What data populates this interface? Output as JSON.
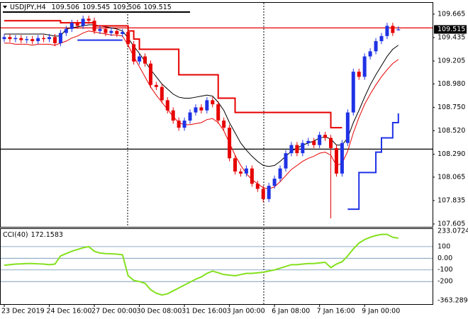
{
  "chart_data": {
    "type": "candlestick",
    "title": "USDJPY,H4",
    "categories": [
      "23 Dec 2019",
      null,
      null,
      null,
      null,
      null,
      null,
      null,
      "24 Dec 16:00",
      null,
      null,
      null,
      null,
      null,
      null,
      null,
      "27 Dec 00:00",
      null,
      null,
      null,
      null,
      null,
      null,
      null,
      "30 Dec 08:00",
      null,
      null,
      null,
      null,
      null,
      null,
      null,
      "31 Dec 16:00",
      null,
      null,
      null,
      null,
      null,
      null,
      null,
      "3 Jan 00:00",
      null,
      null,
      null,
      null,
      null,
      null,
      null,
      "6 Jan 08:00",
      null,
      null,
      null,
      null,
      null,
      null,
      null,
      "7 Jan 16:00",
      null,
      null,
      null,
      null,
      null,
      null,
      null,
      "9 Jan 00:00",
      null,
      null,
      null,
      null,
      null,
      null
    ],
    "open": [
      109.42,
      109.44,
      109.42,
      109.43,
      109.41,
      109.42,
      109.4,
      109.43,
      109.42,
      109.44,
      109.38,
      109.48,
      109.52,
      109.58,
      109.55,
      109.62,
      109.6,
      109.5,
      109.52,
      109.48,
      109.5,
      109.47,
      109.49,
      109.37,
      109.2,
      109.25,
      109.18,
      108.97,
      108.95,
      108.82,
      108.72,
      108.62,
      108.55,
      108.62,
      108.7,
      108.75,
      108.72,
      108.82,
      108.78,
      108.62,
      108.55,
      108.25,
      108.12,
      108.1,
      108.15,
      108.0,
      107.95,
      107.85,
      107.98,
      108.05,
      108.15,
      108.3,
      108.38,
      108.3,
      108.4,
      108.42,
      108.38,
      108.48,
      108.45,
      108.35,
      108.1,
      108.4,
      108.7,
      109.1,
      109.05,
      109.25,
      109.3,
      109.4,
      109.45,
      109.55,
      109.506
    ],
    "high": [
      109.47,
      109.47,
      109.46,
      109.46,
      109.45,
      109.45,
      109.46,
      109.46,
      109.47,
      109.47,
      109.51,
      109.55,
      109.61,
      109.61,
      109.65,
      109.65,
      109.63,
      109.55,
      109.55,
      109.53,
      109.53,
      109.52,
      109.52,
      109.4,
      109.28,
      109.28,
      109.21,
      109.0,
      108.98,
      108.85,
      108.75,
      108.65,
      108.65,
      108.73,
      108.78,
      108.78,
      108.85,
      108.85,
      108.81,
      108.65,
      108.58,
      108.28,
      108.15,
      108.18,
      108.18,
      108.03,
      107.98,
      108.01,
      108.08,
      108.18,
      108.33,
      108.41,
      108.41,
      108.43,
      108.45,
      108.45,
      108.51,
      108.51,
      108.48,
      108.38,
      108.43,
      108.73,
      109.13,
      109.13,
      109.28,
      109.33,
      109.43,
      109.48,
      109.58,
      109.58,
      109.545
    ],
    "low": [
      109.39,
      109.39,
      109.39,
      109.38,
      109.38,
      109.37,
      109.37,
      109.39,
      109.39,
      109.35,
      109.35,
      109.45,
      109.49,
      109.52,
      109.52,
      109.57,
      109.47,
      109.47,
      109.45,
      109.45,
      109.44,
      109.44,
      109.34,
      109.17,
      109.17,
      109.15,
      108.94,
      108.92,
      108.79,
      108.69,
      108.59,
      108.52,
      108.52,
      108.59,
      108.67,
      108.69,
      108.69,
      108.75,
      108.59,
      108.52,
      108.22,
      108.09,
      108.07,
      108.07,
      107.97,
      107.92,
      107.82,
      107.82,
      107.95,
      108.02,
      108.12,
      108.27,
      108.27,
      108.27,
      108.37,
      108.35,
      108.35,
      108.42,
      107.66,
      108.07,
      108.07,
      108.37,
      108.67,
      109.02,
      109.02,
      109.22,
      109.27,
      109.37,
      109.42,
      109.45,
      109.506
    ],
    "close": [
      109.44,
      109.42,
      109.43,
      109.41,
      109.42,
      109.4,
      109.43,
      109.42,
      109.44,
      109.38,
      109.48,
      109.52,
      109.58,
      109.55,
      109.62,
      109.6,
      109.5,
      109.52,
      109.48,
      109.5,
      109.47,
      109.49,
      109.37,
      109.2,
      109.25,
      109.18,
      108.97,
      108.95,
      108.82,
      108.72,
      108.62,
      108.55,
      108.62,
      108.7,
      108.75,
      108.72,
      108.82,
      108.78,
      108.62,
      108.55,
      108.25,
      108.12,
      108.1,
      108.15,
      108.0,
      107.95,
      107.85,
      107.98,
      108.05,
      108.15,
      108.3,
      108.38,
      108.3,
      108.4,
      108.42,
      108.38,
      108.48,
      108.45,
      108.35,
      108.1,
      108.4,
      108.7,
      109.1,
      109.05,
      109.25,
      109.3,
      109.4,
      109.45,
      109.55,
      109.48,
      109.515
    ],
    "up_color": "#1f32e6",
    "down_color": "#e60000",
    "ylim": [
      107.577,
      109.769
    ],
    "yticks": [
      109.665,
      109.435,
      109.205,
      {
        "value": 108.98,
        "label": "108.980"
      },
      {
        "value": 108.75,
        "label": "108.750"
      },
      {
        "value": 108.52,
        "label": "108.520"
      },
      {
        "value": 108.29,
        "label": "108.290"
      },
      108.065,
      107.835,
      107.605
    ],
    "lines": [
      {
        "color": "#000000",
        "width": 1,
        "values": [
          109.47,
          109.47,
          109.47,
          109.47,
          109.47,
          109.47,
          109.47,
          109.47,
          109.46,
          109.45,
          109.45,
          109.52,
          109.53,
          109.54,
          109.55,
          109.56,
          109.56,
          109.55,
          109.54,
          109.53,
          109.52,
          109.5,
          109.43,
          109.35,
          109.28,
          109.2,
          109.12,
          109.05,
          108.98,
          108.93,
          108.88,
          108.85,
          108.84,
          108.84,
          108.85,
          108.86,
          108.87,
          108.86,
          108.8,
          108.72,
          108.6,
          108.5,
          108.4,
          108.33,
          108.27,
          108.22,
          108.18,
          108.17,
          108.18,
          108.22,
          108.27,
          108.32,
          108.35,
          108.38,
          108.4,
          108.42,
          108.45,
          108.46,
          108.44,
          108.38,
          108.38,
          108.45,
          108.6,
          108.72,
          108.85,
          108.97,
          109.07,
          109.16,
          109.25,
          109.32,
          109.36
        ]
      },
      {
        "color": "#e60000",
        "width": 1,
        "values": [
          109.38,
          109.38,
          109.37,
          109.37,
          109.37,
          109.36,
          109.37,
          109.37,
          109.37,
          109.36,
          109.38,
          109.4,
          109.43,
          109.45,
          109.48,
          109.5,
          109.49,
          109.48,
          109.47,
          109.46,
          109.46,
          109.45,
          109.36,
          109.25,
          109.15,
          109.05,
          108.95,
          108.87,
          108.8,
          108.73,
          108.66,
          108.6,
          108.58,
          108.58,
          108.59,
          108.6,
          108.63,
          108.64,
          108.6,
          108.52,
          108.4,
          108.28,
          108.18,
          108.1,
          108.04,
          108.0,
          107.96,
          107.95,
          107.97,
          108.02,
          108.08,
          108.14,
          108.18,
          108.22,
          108.25,
          108.27,
          108.3,
          108.31,
          108.28,
          108.18,
          108.2,
          108.32,
          108.5,
          108.65,
          108.78,
          108.88,
          108.97,
          109.05,
          109.12,
          109.18,
          109.22
        ]
      },
      {
        "color": "#e60000",
        "width": 2,
        "step": true,
        "values": [
          109.6,
          109.6,
          109.6,
          109.6,
          109.6,
          109.6,
          109.6,
          109.6,
          109.6,
          109.6,
          109.58,
          109.58,
          109.58,
          109.58,
          109.58,
          109.58,
          109.55,
          109.55,
          109.55,
          109.55,
          109.55,
          109.55,
          109.5,
          109.42,
          109.32,
          109.32,
          109.32,
          109.32,
          109.32,
          109.32,
          109.32,
          109.07,
          109.07,
          109.07,
          109.07,
          109.07,
          109.07,
          109.07,
          108.84,
          108.84,
          108.84,
          108.7,
          108.7,
          108.7,
          108.7,
          108.7,
          108.7,
          108.7,
          108.7,
          108.7,
          108.7,
          108.7,
          108.7,
          108.7,
          108.7,
          108.7,
          108.7,
          108.7,
          108.55,
          108.55,
          108.55,
          null,
          null,
          null,
          null,
          null,
          null,
          null,
          null,
          null,
          null
        ]
      },
      {
        "color": "#1f32e6",
        "width": 2,
        "step": true,
        "values": [
          null,
          null,
          null,
          null,
          null,
          null,
          null,
          null,
          null,
          null,
          null,
          null,
          null,
          109.41,
          109.41,
          109.41,
          109.41,
          109.41,
          109.41,
          109.41,
          109.41,
          109.41,
          null,
          null,
          null,
          null,
          null,
          null,
          null,
          null,
          null,
          null,
          null,
          null,
          null,
          null,
          null,
          null,
          null,
          null,
          null,
          null,
          null,
          null,
          null,
          null,
          null,
          null,
          null,
          null,
          null,
          null,
          null,
          null,
          null,
          null,
          null,
          null,
          null,
          null,
          null,
          107.75,
          107.75,
          108.11,
          108.11,
          108.11,
          108.31,
          108.45,
          108.45,
          108.6,
          108.69
        ]
      }
    ],
    "hlines": [
      {
        "value": 108.34,
        "color": "#000000"
      },
      {
        "value": 109.53,
        "color": "#e60000"
      }
    ],
    "indicator": {
      "title": "CCI(40)",
      "color": "#84e01e",
      "level_color": "#6c8fb4",
      "values": [
        -60,
        -55,
        -50,
        -48,
        -45,
        -45,
        -48,
        -50,
        -55,
        -50,
        20,
        40,
        60,
        75,
        90,
        100,
        60,
        45,
        40,
        38,
        35,
        30,
        -150,
        -190,
        -200,
        -215,
        -270,
        -300,
        -315,
        -305,
        -280,
        -255,
        -230,
        -205,
        -180,
        -160,
        -130,
        -110,
        -125,
        -140,
        -145,
        -150,
        -140,
        -130,
        -130,
        -125,
        -120,
        -110,
        -100,
        -85,
        -70,
        -55,
        -55,
        -50,
        -45,
        -45,
        -40,
        -35,
        -80,
        -50,
        -30,
        20,
        80,
        130,
        160,
        180,
        195,
        205,
        205,
        180,
        172.1583
      ],
      "ylim": [
        -363.2895,
        233.0724
      ],
      "yticks": [
        233.0724,
        100,
        {
          "value": 0,
          "label": "0.00"
        },
        -100,
        -200,
        -363.2895
      ]
    }
  }
}
